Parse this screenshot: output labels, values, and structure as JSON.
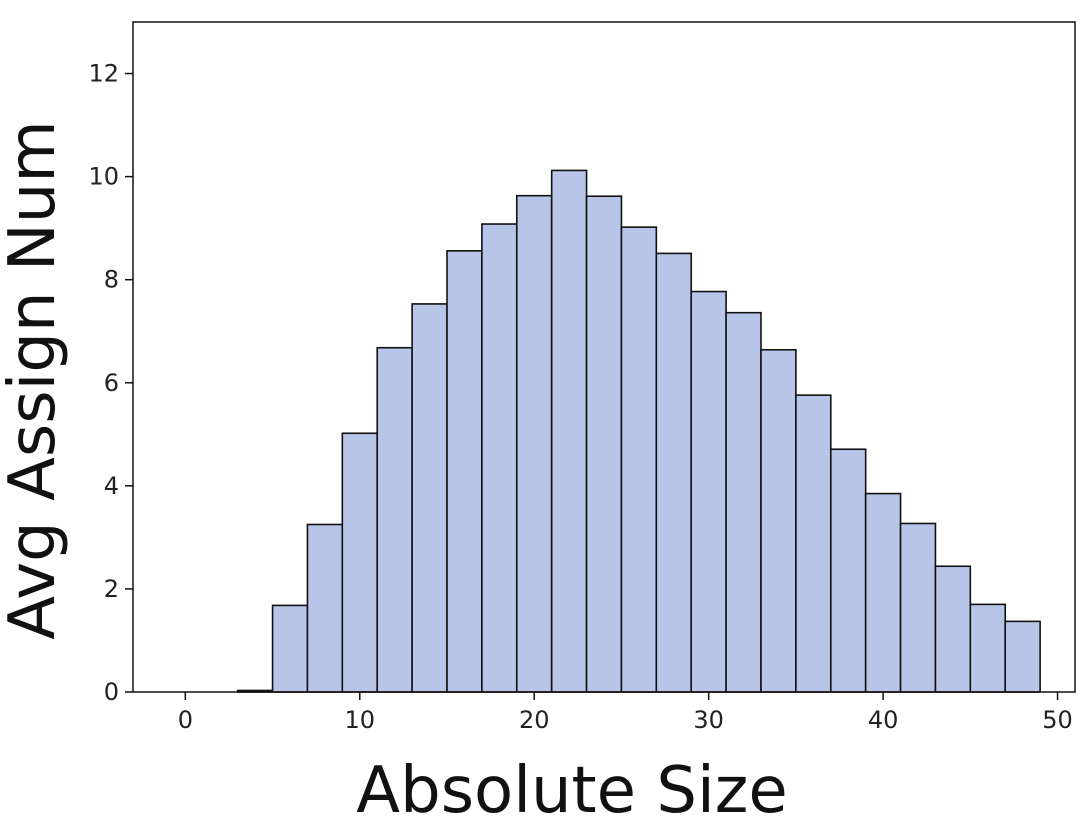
{
  "chart_data": {
    "type": "bar",
    "title": "",
    "xlabel": "Absolute Size",
    "ylabel": "Avg Assign Num",
    "bin_width": 2,
    "bin_starts": [
      -1,
      1,
      3,
      5,
      7,
      9,
      11,
      13,
      15,
      17,
      19,
      21,
      23,
      25,
      27,
      29,
      31,
      33,
      35,
      37,
      39,
      41,
      43,
      45,
      47
    ],
    "values": [
      0.0,
      0.0,
      0.03,
      1.68,
      3.25,
      5.02,
      6.68,
      7.53,
      8.56,
      9.08,
      9.63,
      10.12,
      9.62,
      9.02,
      8.51,
      7.77,
      7.36,
      6.64,
      5.76,
      4.71,
      3.85,
      3.27,
      2.44,
      1.7,
      1.37
    ],
    "xlim": [
      -3,
      51
    ],
    "ylim": [
      0,
      13
    ],
    "xticks": [
      0,
      10,
      20,
      30,
      40,
      50
    ],
    "yticks": [
      0,
      2,
      4,
      6,
      8,
      10,
      12
    ],
    "bar_color": "#b7c6e8",
    "edge_color": "#111111",
    "grid": false,
    "legend": "none"
  }
}
